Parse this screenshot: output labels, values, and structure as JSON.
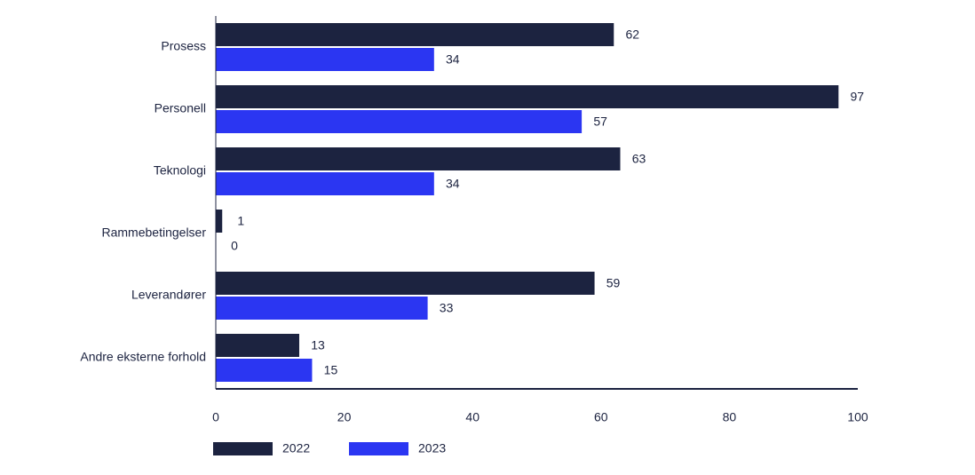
{
  "chart_data": {
    "type": "hbar",
    "categories": [
      "Prosess",
      "Personell",
      "Teknologi",
      "Rammebetingelser",
      "Leverandører",
      "Andre eksterne forhold"
    ],
    "series": [
      {
        "name": "2022",
        "color": "#1c2340",
        "values": [
          62,
          97,
          63,
          1,
          59,
          13
        ]
      },
      {
        "name": "2023",
        "color": "#2b36f2",
        "values": [
          34,
          57,
          34,
          0,
          33,
          15
        ]
      }
    ],
    "xlim": [
      0,
      100
    ],
    "xticks": [
      0,
      20,
      40,
      60,
      80,
      100
    ],
    "grid": false
  }
}
